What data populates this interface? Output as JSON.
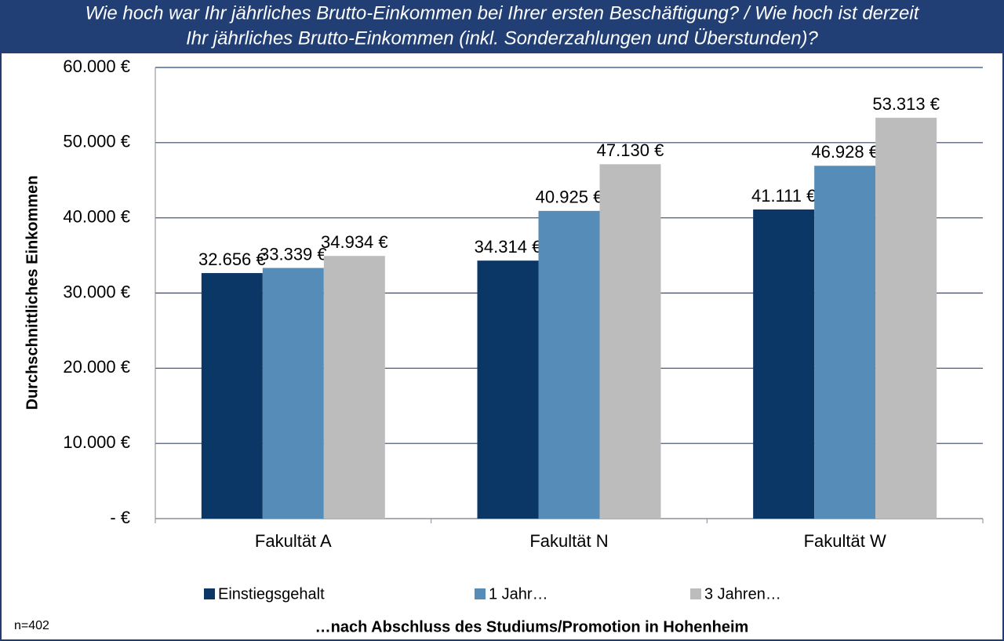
{
  "chart_data": {
    "type": "bar",
    "title": [
      "Wie hoch war Ihr jährliches Brutto-Einkommen bei Ihrer ersten Beschäftigung? / Wie hoch ist derzeit",
      "Ihr jährliches Brutto-Einkommen (inkl. Sonderzahlungen und Überstunden)?"
    ],
    "y_label": "Durchschnittliches Einkommen",
    "x_label": "…nach Abschluss des Studiums/Promotion in Hohenheim",
    "note": "n=402",
    "categories": [
      "Fakultät A",
      "Fakultät N",
      "Fakultät W"
    ],
    "series": [
      {
        "name": "Einstiegsgehalt",
        "color": "#0b3766",
        "values": [
          32656,
          34314,
          41111
        ],
        "value_labels": [
          "32.656 €",
          "34.314 €",
          "41.111 €"
        ]
      },
      {
        "name": "1 Jahr…",
        "color": "#568db8",
        "values": [
          33339,
          40925,
          46928
        ],
        "value_labels": [
          "33.339 €",
          "40.925 €",
          "46.928 €"
        ]
      },
      {
        "name": "3 Jahren…",
        "color": "#bcbcbc",
        "values": [
          34934,
          47130,
          53313
        ],
        "value_labels": [
          "34.934 €",
          "47.130 €",
          "53.313 €"
        ]
      }
    ],
    "ylim": [
      0,
      60000
    ],
    "yticks": [
      {
        "value": 0,
        "label": "-  €"
      },
      {
        "value": 10000,
        "label": "10.000 €"
      },
      {
        "value": 20000,
        "label": "20.000 €"
      },
      {
        "value": 30000,
        "label": "30.000 €"
      },
      {
        "value": 40000,
        "label": "40.000 €"
      },
      {
        "value": 50000,
        "label": "50.000 €"
      },
      {
        "value": 60000,
        "label": "60.000 €"
      }
    ],
    "grid": true
  }
}
